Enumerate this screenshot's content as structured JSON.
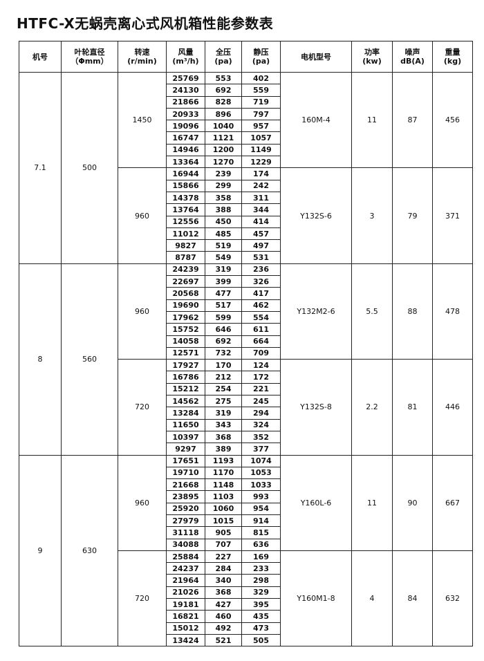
{
  "title": "HTFC-X无蜗壳离心式风机箱性能参数表",
  "header": [
    [
      "机号"
    ],
    [
      "叶轮直径",
      "（Φmm）"
    ],
    [
      "转速",
      "(r/min)"
    ],
    [
      "风量",
      "(m³/h)"
    ],
    [
      "全压",
      "(pa)"
    ],
    [
      "静压",
      "(pa)"
    ],
    [
      "电机型号"
    ],
    [
      "功率",
      "(kw)"
    ],
    [
      "噪声",
      "dB(A)"
    ],
    [
      "重量",
      "(kg)"
    ]
  ],
  "groups": [
    {
      "model": "7.1",
      "diameter": "500",
      "speeds": [
        {
          "speed": "1450",
          "motor": "160M-4",
          "power": "11",
          "noise": "87",
          "weight": "456",
          "rows": [
            [
              "25769",
              "553",
              "402"
            ],
            [
              "24130",
              "692",
              "559"
            ],
            [
              "21866",
              "828",
              "719"
            ],
            [
              "20933",
              "896",
              "797"
            ],
            [
              "19096",
              "1040",
              "957"
            ],
            [
              "16747",
              "1121",
              "1057"
            ],
            [
              "14946",
              "1200",
              "1149"
            ],
            [
              "13364",
              "1270",
              "1229"
            ]
          ]
        },
        {
          "speed": "960",
          "motor": "Y132S-6",
          "power": "3",
          "noise": "79",
          "weight": "371",
          "rows": [
            [
              "16944",
              "239",
              "174"
            ],
            [
              "15866",
              "299",
              "242"
            ],
            [
              "14378",
              "358",
              "311"
            ],
            [
              "13764",
              "388",
              "344"
            ],
            [
              "12556",
              "450",
              "414"
            ],
            [
              "11012",
              "485",
              "457"
            ],
            [
              "9827",
              "519",
              "497"
            ],
            [
              "8787",
              "549",
              "531"
            ]
          ]
        }
      ]
    },
    {
      "model": "8",
      "diameter": "560",
      "speeds": [
        {
          "speed": "960",
          "motor": "Y132M2-6",
          "power": "5.5",
          "noise": "88",
          "weight": "478",
          "rows": [
            [
              "24239",
              "319",
              "236"
            ],
            [
              "22697",
              "399",
              "326"
            ],
            [
              "20568",
              "477",
              "417"
            ],
            [
              "19690",
              "517",
              "462"
            ],
            [
              "17962",
              "599",
              "554"
            ],
            [
              "15752",
              "646",
              "611"
            ],
            [
              "14058",
              "692",
              "664"
            ],
            [
              "12571",
              "732",
              "709"
            ]
          ]
        },
        {
          "speed": "720",
          "motor": "Y132S-8",
          "power": "2.2",
          "noise": "81",
          "weight": "446",
          "rows": [
            [
              "17927",
              "170",
              "124"
            ],
            [
              "16786",
              "212",
              "172"
            ],
            [
              "15212",
              "254",
              "221"
            ],
            [
              "14562",
              "275",
              "245"
            ],
            [
              "13284",
              "319",
              "294"
            ],
            [
              "11650",
              "343",
              "324"
            ],
            [
              "10397",
              "368",
              "352"
            ],
            [
              "9297",
              "389",
              "377"
            ]
          ]
        }
      ]
    },
    {
      "model": "9",
      "diameter": "630",
      "speeds": [
        {
          "speed": "960",
          "motor": "Y160L-6",
          "power": "11",
          "noise": "90",
          "weight": "667",
          "rows": [
            [
              "17651",
              "1193",
              "1074"
            ],
            [
              "19710",
              "1170",
              "1053"
            ],
            [
              "21668",
              "1148",
              "1033"
            ],
            [
              "23895",
              "1103",
              "993"
            ],
            [
              "25920",
              "1060",
              "954"
            ],
            [
              "27979",
              "1015",
              "914"
            ],
            [
              "31118",
              "905",
              "815"
            ],
            [
              "34088",
              "707",
              "636"
            ]
          ]
        },
        {
          "speed": "720",
          "motor": "Y160M1-8",
          "power": "4",
          "noise": "84",
          "weight": "632",
          "rows": [
            [
              "25884",
              "227",
              "169"
            ],
            [
              "24237",
              "284",
              "233"
            ],
            [
              "21964",
              "340",
              "298"
            ],
            [
              "21026",
              "368",
              "329"
            ],
            [
              "19181",
              "427",
              "395"
            ],
            [
              "16821",
              "460",
              "435"
            ],
            [
              "15012",
              "492",
              "473"
            ],
            [
              "13424",
              "521",
              "505"
            ]
          ]
        }
      ]
    }
  ]
}
